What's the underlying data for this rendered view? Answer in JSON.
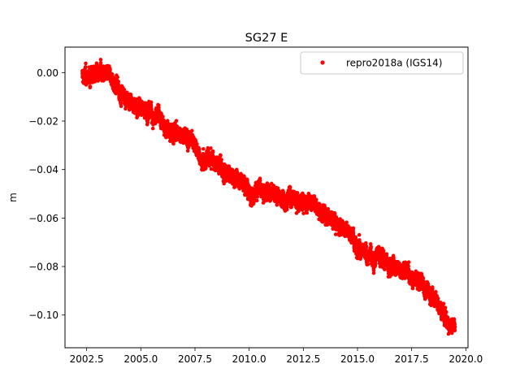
{
  "chart_data": {
    "type": "scatter",
    "title": "SG27 E",
    "xlabel": "",
    "ylabel": "m",
    "xlim": [
      2001.5,
      2020.1
    ],
    "ylim": [
      -0.1135,
      0.0105
    ],
    "xticks": [
      2002.5,
      2005.0,
      2007.5,
      2010.0,
      2012.5,
      2015.0,
      2017.5,
      2020.0
    ],
    "xtick_labels": [
      "2002.5",
      "2005.0",
      "2007.5",
      "2010.0",
      "2012.5",
      "2015.0",
      "2017.5",
      "2020.0"
    ],
    "yticks": [
      0.0,
      -0.02,
      -0.04,
      -0.06,
      -0.08,
      -0.1
    ],
    "ytick_labels": [
      "0.00",
      "−0.02",
      "−0.04",
      "−0.06",
      "−0.08",
      "−0.10"
    ],
    "grid": false,
    "legend_position": "top-right",
    "series": [
      {
        "name": "repro2018a (IGS14)",
        "color": "#ff0000",
        "marker": "point",
        "trend": {
          "x": [
            2002.3,
            2002.6,
            2003.0,
            2003.4,
            2003.8,
            2004.2,
            2004.6,
            2005.0,
            2005.5,
            2006.0,
            2006.5,
            2007.0,
            2007.5,
            2007.8,
            2008.2,
            2008.8,
            2009.3,
            2009.7,
            2010.0,
            2010.5,
            2011.0,
            2011.5,
            2012.0,
            2012.5,
            2013.0,
            2013.5,
            2014.0,
            2014.5,
            2014.9,
            2015.2,
            2015.6,
            2016.0,
            2016.5,
            2017.0,
            2017.5,
            2018.0,
            2018.5,
            2018.9,
            2019.2,
            2019.5
          ],
          "y": [
            -0.0015,
            -0.002,
            0.0005,
            -0.001,
            -0.004,
            -0.01,
            -0.013,
            -0.014,
            -0.017,
            -0.021,
            -0.024,
            -0.026,
            -0.029,
            -0.038,
            -0.036,
            -0.039,
            -0.043,
            -0.044,
            -0.05,
            -0.048,
            -0.05,
            -0.052,
            -0.052,
            -0.053,
            -0.055,
            -0.058,
            -0.062,
            -0.065,
            -0.068,
            -0.075,
            -0.076,
            -0.075,
            -0.079,
            -0.08,
            -0.084,
            -0.088,
            -0.092,
            -0.099,
            -0.103,
            -0.104
          ]
        },
        "scatter": 0.0022
      }
    ]
  }
}
